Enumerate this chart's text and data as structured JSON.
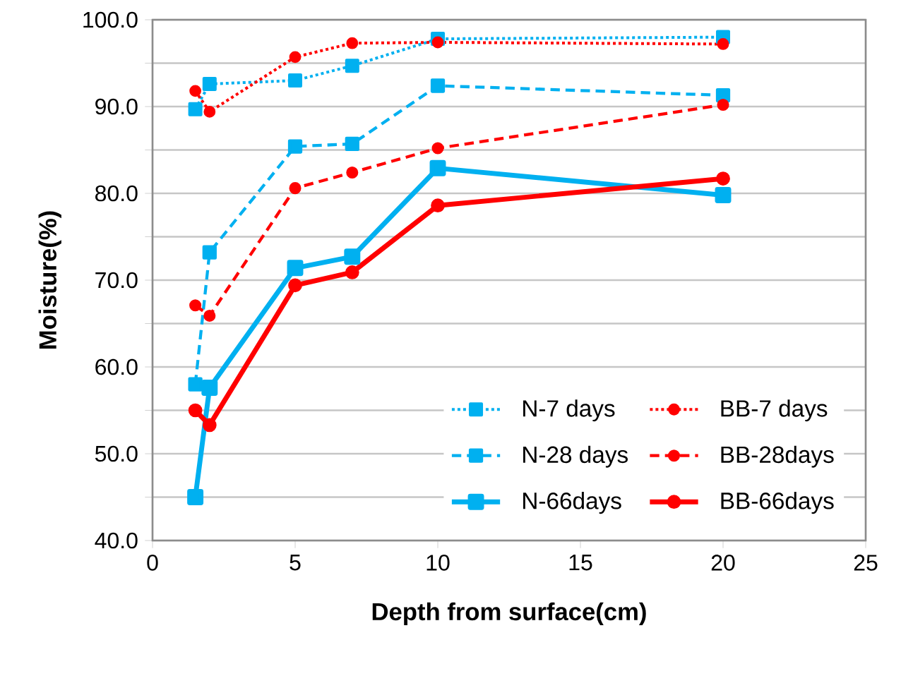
{
  "chart_data": {
    "type": "line",
    "xlabel": "Depth from surface(cm)",
    "ylabel": "Moisture(%)",
    "xlim": [
      0,
      25
    ],
    "xticks": [
      0,
      5,
      10,
      15,
      20,
      25
    ],
    "ylim": [
      40,
      100
    ],
    "yticks": [
      {
        "value": 40,
        "label": "40.0"
      },
      {
        "value": 45,
        "label": null
      },
      {
        "value": 50,
        "label": "50.0"
      },
      {
        "value": 55,
        "label": null
      },
      {
        "value": 60,
        "label": "60.0"
      },
      {
        "value": 65,
        "label": null
      },
      {
        "value": 70,
        "label": "70.0"
      },
      {
        "value": 75,
        "label": null
      },
      {
        "value": 80,
        "label": "80.0"
      },
      {
        "value": 85,
        "label": null
      },
      {
        "value": 90,
        "label": "90.0"
      },
      {
        "value": 95,
        "label": null
      },
      {
        "value": 100,
        "label": "100.0"
      }
    ],
    "grid": "y",
    "legend": "bottom right",
    "x": [
      1.5,
      2,
      5,
      7,
      10,
      20
    ],
    "series": [
      {
        "name": "N-7 days",
        "color": "#00b0f0",
        "marker": "square",
        "line_style": "dotted",
        "values": [
          89.7,
          92.6,
          93.0,
          94.7,
          97.8,
          98.0
        ]
      },
      {
        "name": "BB-7 days",
        "color": "#ff0000",
        "marker": "circle",
        "line_style": "dotted",
        "values": [
          91.8,
          89.4,
          95.7,
          97.3,
          97.4,
          97.2
        ]
      },
      {
        "name": "N-28 days",
        "color": "#00b0f0",
        "marker": "square",
        "line_style": "dashed",
        "values": [
          58.0,
          73.2,
          85.4,
          85.7,
          92.4,
          91.3
        ]
      },
      {
        "name": "BB-28days",
        "color": "#ff0000",
        "marker": "circle",
        "line_style": "dashed",
        "values": [
          67.1,
          65.9,
          80.6,
          82.4,
          85.2,
          90.2
        ]
      },
      {
        "name": "N-66days",
        "color": "#00b0f0",
        "marker": "square",
        "line_style": "solid",
        "values": [
          45.0,
          57.6,
          71.4,
          72.7,
          82.9,
          79.8
        ]
      },
      {
        "name": "BB-66days",
        "color": "#ff0000",
        "marker": "circle",
        "line_style": "solid",
        "values": [
          55.0,
          53.3,
          69.4,
          70.9,
          78.6,
          81.7
        ]
      }
    ]
  }
}
